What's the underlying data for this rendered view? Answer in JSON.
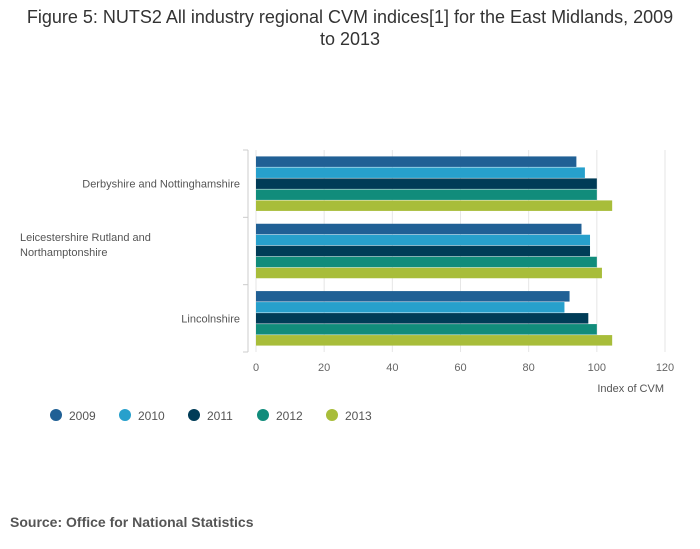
{
  "chart_data": {
    "type": "bar",
    "orientation": "horizontal",
    "title": "Figure 5: NUTS2 All industry regional CVM indices[1] for the East Midlands, 2009 to 2013",
    "categories": [
      [
        "Derbyshire and Nottinghamshire"
      ],
      [
        "Leicestershire Rutland and",
        "Northamptonshire"
      ],
      [
        "Lincolnshire"
      ]
    ],
    "series": [
      {
        "name": "2009",
        "color": "#206095",
        "values": [
          94,
          95.5,
          92
        ]
      },
      {
        "name": "2010",
        "color": "#27a0cc",
        "values": [
          96.5,
          98,
          90.5
        ]
      },
      {
        "name": "2011",
        "color": "#003c57",
        "values": [
          100,
          98,
          97.5
        ]
      },
      {
        "name": "2012",
        "color": "#118c7b",
        "values": [
          100,
          100,
          100
        ]
      },
      {
        "name": "2013",
        "color": "#a8bd3a",
        "values": [
          104.5,
          101.5,
          104.5
        ]
      }
    ],
    "xlabel": "Index of CVM",
    "xlim": [
      0,
      120
    ],
    "xticks": [
      "0",
      "20",
      "40",
      "60",
      "80",
      "100",
      "120"
    ],
    "grid": true,
    "legend": "bottom-left"
  },
  "source": "Source: Office for National Statistics"
}
